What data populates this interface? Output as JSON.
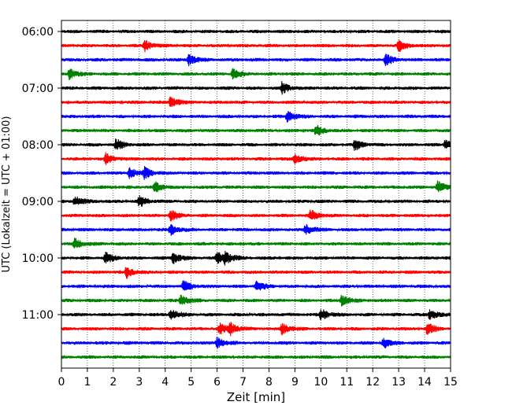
{
  "chart_data": {
    "type": "line",
    "title": "",
    "xlabel": "Zeit  [min]",
    "ylabel": "UTC (Lokalzeit = UTC + 01:00)",
    "xlim": [
      0,
      15
    ],
    "x_ticks": [
      0,
      1,
      2,
      3,
      4,
      5,
      6,
      7,
      8,
      9,
      10,
      11,
      12,
      13,
      14,
      15
    ],
    "x_tick_labels": [
      "0",
      "1",
      "2",
      "3",
      "4",
      "5",
      "6",
      "7",
      "8",
      "9",
      "10",
      "11",
      "12",
      "13",
      "14",
      "15"
    ],
    "y_tick_labels": [
      "06:00",
      "07:00",
      "08:00",
      "09:00",
      "10:00",
      "11:00"
    ],
    "y_tick_rows": [
      0,
      4,
      8,
      12,
      16,
      20
    ],
    "grid": {
      "x": true,
      "style": "dotted"
    },
    "trace_interval_minutes": 15,
    "series_colors": [
      "#000000",
      "#ff0000",
      "#0000ff",
      "#008000"
    ],
    "traces": [
      {
        "start": "06:00",
        "color": "#000000",
        "events": []
      },
      {
        "start": "06:15",
        "color": "#ff0000",
        "events": [
          3.2,
          13.0
        ]
      },
      {
        "start": "06:30",
        "color": "#0000ff",
        "events": [
          4.9,
          12.5
        ]
      },
      {
        "start": "06:45",
        "color": "#008000",
        "events": [
          0.3,
          6.6
        ]
      },
      {
        "start": "07:00",
        "color": "#000000",
        "events": [
          8.5
        ]
      },
      {
        "start": "07:15",
        "color": "#ff0000",
        "events": [
          4.2
        ]
      },
      {
        "start": "07:30",
        "color": "#0000ff",
        "events": [
          8.7
        ]
      },
      {
        "start": "07:45",
        "color": "#008000",
        "events": [
          9.8
        ]
      },
      {
        "start": "08:00",
        "color": "#000000",
        "events": [
          2.1,
          11.3,
          14.8
        ]
      },
      {
        "start": "08:15",
        "color": "#ff0000",
        "events": [
          1.7,
          9.0
        ]
      },
      {
        "start": "08:30",
        "color": "#0000ff",
        "events": [
          2.6,
          3.2
        ]
      },
      {
        "start": "08:45",
        "color": "#008000",
        "events": [
          3.6,
          14.5
        ]
      },
      {
        "start": "09:00",
        "color": "#000000",
        "events": [
          0.5,
          3.0
        ]
      },
      {
        "start": "09:15",
        "color": "#ff0000",
        "events": [
          4.2,
          9.6
        ]
      },
      {
        "start": "09:30",
        "color": "#0000ff",
        "events": [
          4.2,
          9.4
        ]
      },
      {
        "start": "09:45",
        "color": "#008000",
        "events": [
          0.5
        ]
      },
      {
        "start": "10:00",
        "color": "#000000",
        "events": [
          1.7,
          4.3,
          6.0,
          6.3
        ]
      },
      {
        "start": "10:15",
        "color": "#ff0000",
        "events": [
          2.5
        ]
      },
      {
        "start": "10:30",
        "color": "#0000ff",
        "events": [
          4.7,
          7.5
        ]
      },
      {
        "start": "10:45",
        "color": "#008000",
        "events": [
          4.6,
          10.8
        ]
      },
      {
        "start": "11:00",
        "color": "#000000",
        "events": [
          4.2,
          10.0,
          14.2
        ]
      },
      {
        "start": "11:15",
        "color": "#ff0000",
        "events": [
          6.1,
          6.5,
          8.5,
          14.1
        ]
      },
      {
        "start": "11:30",
        "color": "#0000ff",
        "events": [
          6.0,
          12.4
        ]
      },
      {
        "start": "11:45",
        "color": "#008000",
        "events": []
      }
    ]
  }
}
